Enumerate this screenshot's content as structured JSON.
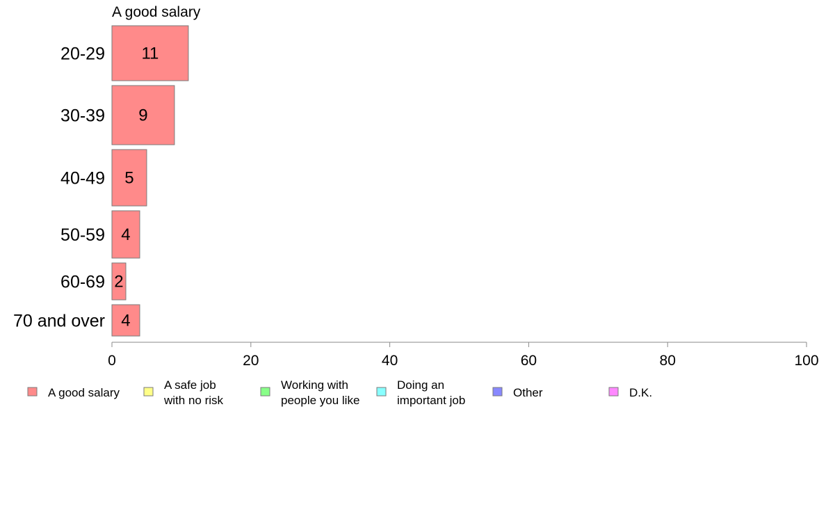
{
  "chart_data": {
    "type": "bar",
    "orientation": "horizontal",
    "title": "A good salary",
    "categories": [
      "20-29",
      "30-39",
      "40-49",
      "50-59",
      "60-69",
      "70 and over"
    ],
    "series": [
      {
        "name": "A good salary",
        "values": [
          11,
          9,
          5,
          4,
          2,
          4
        ],
        "color": "#ff8a8a"
      }
    ],
    "data_labels": [
      "11",
      "9",
      "5",
      "4",
      "2",
      "4"
    ],
    "xlim": [
      0,
      100
    ],
    "xticks": [
      0,
      20,
      40,
      60,
      80,
      100
    ],
    "xtick_labels": [
      "0",
      "20",
      "40",
      "60",
      "80",
      "100"
    ],
    "grid": false,
    "legend_position": "bottom",
    "legend": [
      {
        "lines": [
          "A good salary"
        ],
        "color": "#ff8a8a"
      },
      {
        "lines": [
          "A safe job",
          "with no risk"
        ],
        "color": "#ffff88"
      },
      {
        "lines": [
          "Working with",
          "people you like"
        ],
        "color": "#88ff88"
      },
      {
        "lines": [
          "Doing an",
          "important job"
        ],
        "color": "#88ffff"
      },
      {
        "lines": [
          "Other"
        ],
        "color": "#8888ff"
      },
      {
        "lines": [
          "D.K."
        ],
        "color": "#ff88ff"
      }
    ]
  }
}
